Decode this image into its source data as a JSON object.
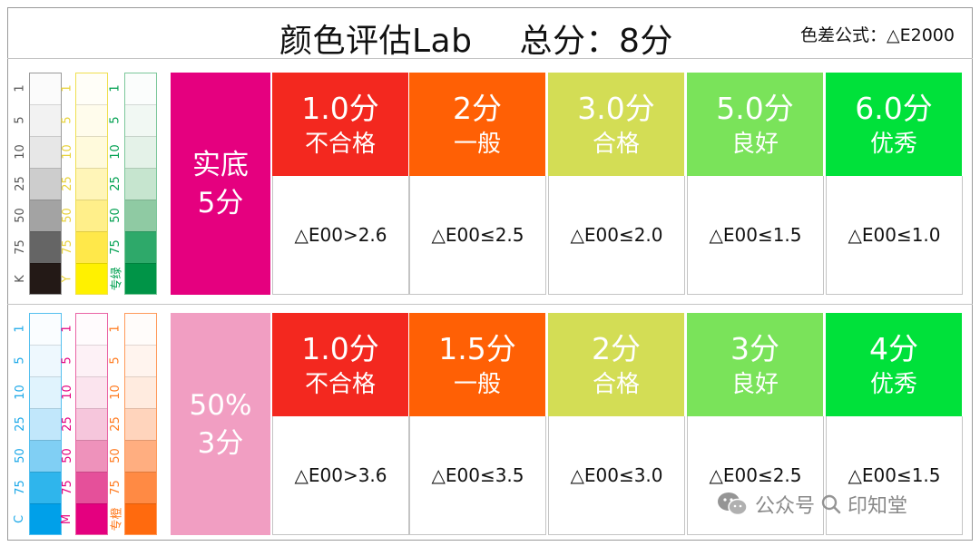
{
  "header": {
    "title": "颜色评估Lab",
    "score": "总分：8分",
    "formula": "色差公式：△E2000"
  },
  "colors": {
    "solid_label_bg": "#e5007f",
    "tint_label_bg": "#f19ec2",
    "grade_bg": [
      "#f3281f",
      "#ff6005",
      "#d3dd55",
      "#7ae35a",
      "#00e13a"
    ]
  },
  "swatches": {
    "top": [
      {
        "name": "K",
        "labels": [
          "1",
          "5",
          "10",
          "25",
          "50",
          "75",
          "K"
        ],
        "colors": [
          "#fbfbfb",
          "#f2f2f2",
          "#e7e7e7",
          "#cdcdcd",
          "#a3a3a3",
          "#656565",
          "#231916"
        ],
        "text_color": "#555555",
        "border": "#9a9a9a"
      },
      {
        "name": "Y",
        "labels": [
          "1",
          "5",
          "10",
          "25",
          "50",
          "75",
          "Y"
        ],
        "colors": [
          "#fffef8",
          "#fffcec",
          "#fffadc",
          "#fff5b8",
          "#ffef8a",
          "#ffe84a",
          "#fff100"
        ],
        "text_color": "#e8d23a",
        "border": "#f0e050"
      },
      {
        "name": "专绿",
        "labels": [
          "1",
          "5",
          "10",
          "25",
          "50",
          "75",
          "专绿"
        ],
        "colors": [
          "#fbfdfc",
          "#f1f8f3",
          "#e4f2e8",
          "#c6e5cf",
          "#8fcaa3",
          "#2ea96a",
          "#009447"
        ],
        "text_color": "#00a050",
        "border": "#7cc79a"
      }
    ],
    "bottom": [
      {
        "name": "C",
        "labels": [
          "1",
          "5",
          "10",
          "25",
          "50",
          "75",
          "C"
        ],
        "colors": [
          "#fafdff",
          "#eef8fe",
          "#e0f3fd",
          "#c1e7fb",
          "#80cff4",
          "#2fb5ec",
          "#00a0e9"
        ],
        "text_color": "#1ba8e8",
        "border": "#55c0ef"
      },
      {
        "name": "M",
        "labels": [
          "1",
          "5",
          "10",
          "25",
          "50",
          "75",
          "M"
        ],
        "colors": [
          "#fffbfd",
          "#fdf1f6",
          "#fbe4ee",
          "#f6c6dc",
          "#ee92bb",
          "#e5509a",
          "#e4007f"
        ],
        "text_color": "#e4007f",
        "border": "#ea64a5"
      },
      {
        "name": "专橙",
        "labels": [
          "1",
          "5",
          "10",
          "25",
          "50",
          "75",
          "专橙"
        ],
        "colors": [
          "#fffcfa",
          "#fff4ee",
          "#ffebdf",
          "#ffd4bc",
          "#ffae80",
          "#ff8a44",
          "#ff6a0e"
        ],
        "text_color": "#ff7a1e",
        "border": "#ff9a5a"
      }
    ]
  },
  "sections": [
    {
      "label_line1": "实底",
      "label_line2": "5分",
      "grades": [
        {
          "score": "1.0分",
          "level": "不合格",
          "criterion": "△E00>2.6"
        },
        {
          "score": "2分",
          "level": "一般",
          "criterion": "△E00≤2.5"
        },
        {
          "score": "3.0分",
          "level": "合格",
          "criterion": "△E00≤2.0"
        },
        {
          "score": "5.0分",
          "level": "良好",
          "criterion": "△E00≤1.5"
        },
        {
          "score": "6.0分",
          "level": "优秀",
          "criterion": "△E00≤1.0"
        }
      ]
    },
    {
      "label_line1": "50%",
      "label_line2": "3分",
      "grades": [
        {
          "score": "1.0分",
          "level": "不合格",
          "criterion": "△E00>3.6"
        },
        {
          "score": "1.5分",
          "level": "一般",
          "criterion": "△E00≤3.5"
        },
        {
          "score": "2分",
          "level": "合格",
          "criterion": "△E00≤3.0"
        },
        {
          "score": "3分",
          "level": "良好",
          "criterion": "△E00≤2.5"
        },
        {
          "score": "4分",
          "level": "优秀",
          "criterion": "△E00≤1.5"
        }
      ]
    }
  ],
  "watermark": {
    "source": "公众号",
    "name": "印知堂"
  }
}
